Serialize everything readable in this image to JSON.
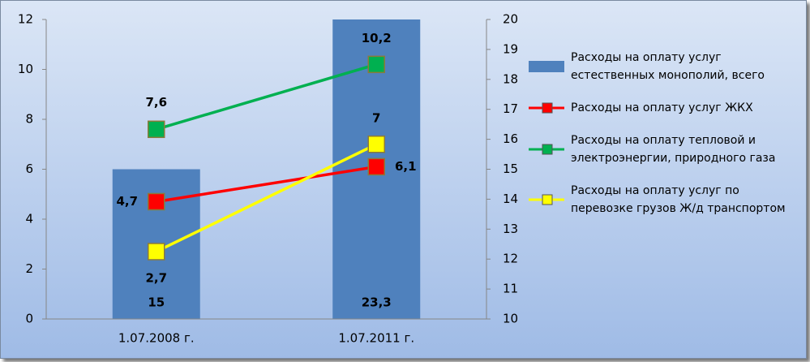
{
  "chart_data": {
    "type": "combo",
    "categories": [
      "1.07.2008 г.",
      "1.07.2011 г."
    ],
    "ylim": [
      0,
      12
    ],
    "yticks": [
      0,
      2,
      4,
      6,
      8,
      10,
      12
    ],
    "y2lim": [
      10,
      20
    ],
    "y2ticks": [
      10,
      11,
      12,
      13,
      14,
      15,
      16,
      17,
      18,
      19,
      20
    ],
    "legend": "right",
    "series": [
      {
        "name": "Расходы на оплату услуг естественных монополий, всего",
        "type": "bar",
        "axis": "y2",
        "color": "#4f81bd",
        "values": [
          15,
          23.3
        ],
        "value_labels": [
          "15",
          "23,3"
        ]
      },
      {
        "name": "Расходы на оплату услуг ЖКХ",
        "type": "line",
        "color": "#ff0000",
        "values": [
          4.7,
          6.1
        ],
        "value_labels": [
          "4,7",
          "6,1"
        ]
      },
      {
        "name": "Расходы на оплату тепловой и электроэнергии, природного газа",
        "type": "line",
        "color": "#00b050",
        "values": [
          7.6,
          10.2
        ],
        "value_labels": [
          "7,6",
          "10,2"
        ]
      },
      {
        "name": "Расходы на оплату услуг по перевозке грузов Ж/д транспортом",
        "type": "line",
        "color": "#ffff00",
        "values": [
          2.7,
          7
        ],
        "value_labels": [
          "2,7",
          "7"
        ]
      }
    ]
  }
}
